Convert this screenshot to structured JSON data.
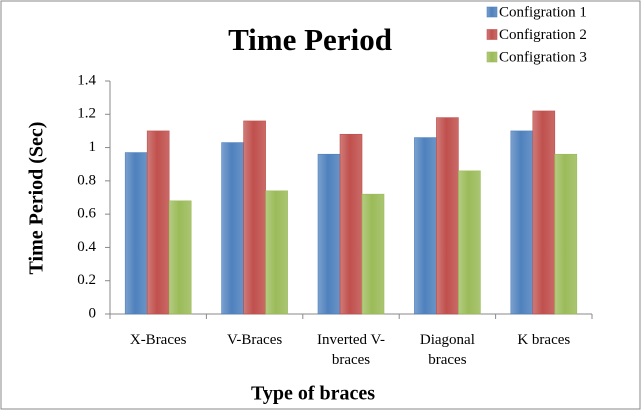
{
  "chart_data": {
    "type": "bar",
    "title": "Time Period",
    "x_label": "Type of braces",
    "y_label": "Time Period (Sec)",
    "categories": [
      "X-Braces",
      "V-Braces",
      "Inverted V- braces",
      "Diagonal braces",
      "K braces"
    ],
    "series": [
      {
        "name": "Configration 1",
        "color": "#4f81bd",
        "values": [
          0.97,
          1.03,
          0.96,
          1.06,
          1.1
        ]
      },
      {
        "name": "Configration 2",
        "color": "#c0504d",
        "values": [
          1.1,
          1.16,
          1.08,
          1.18,
          1.22
        ]
      },
      {
        "name": "Configration 3",
        "color": "#9bbb59",
        "values": [
          0.68,
          0.74,
          0.72,
          0.86,
          0.96
        ]
      }
    ],
    "ylim": [
      0,
      1.4
    ],
    "yticks": [
      0,
      0.2,
      0.4,
      0.6,
      0.8,
      1,
      1.2,
      1.4
    ],
    "grid": false,
    "legend": "top-right"
  }
}
